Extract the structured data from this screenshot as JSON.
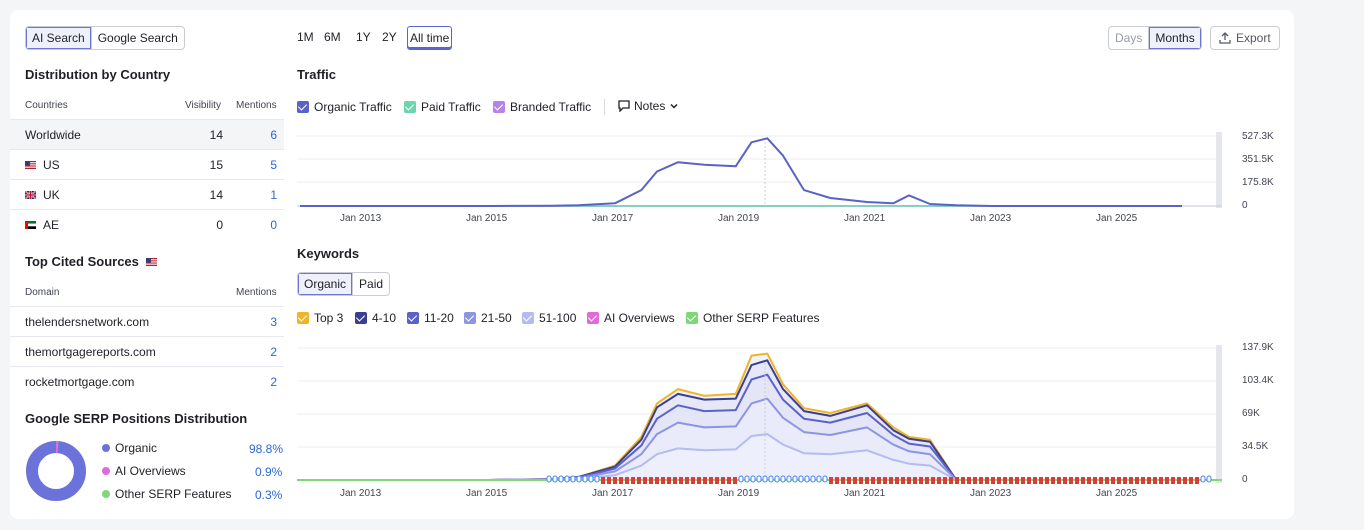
{
  "search_toggle": {
    "options": [
      "AI Search",
      "Google Search"
    ],
    "active": 0
  },
  "periods": {
    "options": [
      "1M",
      "6M",
      "1Y",
      "2Y",
      "All time"
    ],
    "active": 4
  },
  "granularity": {
    "options": [
      "Days",
      "Months"
    ],
    "active": 1
  },
  "export_label": "Export",
  "country_section": {
    "title": "Distribution by Country",
    "columns": [
      "Countries",
      "Visibility",
      "Mentions"
    ],
    "rows": [
      {
        "name": "Worldwide",
        "visibility": "14",
        "mentions": "6",
        "flag": ""
      },
      {
        "name": "US",
        "visibility": "15",
        "mentions": "5",
        "flag": "us"
      },
      {
        "name": "UK",
        "visibility": "14",
        "mentions": "1",
        "flag": "uk"
      },
      {
        "name": "AE",
        "visibility": "0",
        "mentions": "0",
        "flag": "ae"
      }
    ]
  },
  "sources_section": {
    "title": "Top Cited Sources",
    "columns": [
      "Domain",
      "Mentions"
    ],
    "rows": [
      {
        "domain": "thelendersnetwork.com",
        "mentions": "3"
      },
      {
        "domain": "themortgagereports.com",
        "mentions": "2"
      },
      {
        "domain": "rocketmortgage.com",
        "mentions": "2"
      }
    ]
  },
  "serp_section": {
    "title": "Google SERP Positions Distribution",
    "items": [
      {
        "label": "Organic",
        "value": "98.8%",
        "color": "#6b72d9",
        "share": 0.988
      },
      {
        "label": "AI Overviews",
        "value": "0.9%",
        "color": "#e06ad9",
        "share": 0.009
      },
      {
        "label": "Other SERP Features",
        "value": "0.3%",
        "color": "#7ed87a",
        "share": 0.003
      }
    ]
  },
  "traffic": {
    "title": "Traffic",
    "legend": [
      {
        "label": "Organic Traffic",
        "color": "#5a62c8"
      },
      {
        "label": "Paid Traffic",
        "color": "#6fd3b0"
      },
      {
        "label": "Branded Traffic",
        "color": "#b583ea"
      }
    ],
    "notes_label": "Notes",
    "y_ticks": [
      "527.3K",
      "351.5K",
      "175.8K",
      "0"
    ],
    "x_ticks": [
      "Jan 2013",
      "Jan 2015",
      "Jan 2017",
      "Jan 2019",
      "Jan 2021",
      "Jan 2023",
      "Jan 2025"
    ]
  },
  "keywords": {
    "title": "Keywords",
    "tabs": [
      "Organic",
      "Paid"
    ],
    "active_tab": 0,
    "legend": [
      {
        "label": "Top 3",
        "color": "#f0b428"
      },
      {
        "label": "4-10",
        "color": "#3b3f8f"
      },
      {
        "label": "11-20",
        "color": "#5a62c8"
      },
      {
        "label": "21-50",
        "color": "#8d94e3"
      },
      {
        "label": "51-100",
        "color": "#b4bbf0"
      },
      {
        "label": "AI Overviews",
        "color": "#e06ad9"
      },
      {
        "label": "Other SERP Features",
        "color": "#7ed87a"
      }
    ],
    "y_ticks": [
      "137.9K",
      "103.4K",
      "69K",
      "34.5K",
      "0"
    ],
    "x_ticks": [
      "Jan 2013",
      "Jan 2015",
      "Jan 2017",
      "Jan 2019",
      "Jan 2021",
      "Jan 2023",
      "Jan 2025"
    ]
  },
  "chart_data": [
    {
      "type": "line",
      "ylabel": "",
      "xlabel": "",
      "ylim": [
        0,
        527300
      ],
      "x": [
        "2012-01",
        "2013-01",
        "2014-01",
        "2015-01",
        "2016-01",
        "2016-06",
        "2017-01",
        "2017-06",
        "2017-09",
        "2018-01",
        "2018-06",
        "2018-12",
        "2019-03",
        "2019-06",
        "2019-09",
        "2020-01",
        "2020-06",
        "2021-01",
        "2021-06",
        "2021-09",
        "2022-01",
        "2022-06",
        "2023-01",
        "2024-01",
        "2025-01",
        "2026-01"
      ],
      "series": [
        {
          "name": "Organic Traffic",
          "values": [
            0,
            0,
            0,
            0,
            2000,
            5000,
            20000,
            120000,
            260000,
            330000,
            310000,
            300000,
            480000,
            510000,
            380000,
            120000,
            60000,
            30000,
            20000,
            80000,
            15000,
            5000,
            0,
            0,
            0,
            0
          ]
        },
        {
          "name": "Paid Traffic",
          "values": [
            0,
            0,
            0,
            0,
            0,
            0,
            0,
            0,
            0,
            0,
            0,
            0,
            0,
            0,
            0,
            0,
            0,
            0,
            0,
            0,
            0,
            0,
            0,
            0,
            0,
            0
          ]
        },
        {
          "name": "Branded Traffic",
          "values": [
            0,
            0,
            0,
            0,
            0,
            0,
            0,
            0,
            0,
            0,
            0,
            0,
            0,
            0,
            0,
            0,
            0,
            0,
            0,
            0,
            0,
            0,
            0,
            0,
            0,
            0
          ]
        }
      ]
    },
    {
      "type": "area",
      "ylabel": "",
      "xlabel": "",
      "ylim": [
        0,
        137900
      ],
      "x": [
        "2012-01",
        "2013-01",
        "2014-01",
        "2015-01",
        "2016-01",
        "2016-06",
        "2017-01",
        "2017-06",
        "2017-09",
        "2018-01",
        "2018-06",
        "2018-12",
        "2019-03",
        "2019-06",
        "2019-09",
        "2020-01",
        "2020-06",
        "2021-01",
        "2021-06",
        "2021-09",
        "2022-01",
        "2022-06",
        "2023-01",
        "2024-01",
        "2025-01",
        "2026-01"
      ],
      "series": [
        {
          "name": "Top 3",
          "values": [
            0,
            0,
            0,
            0,
            1000,
            3000,
            15000,
            45000,
            80000,
            95000,
            88000,
            90000,
            130000,
            132000,
            100000,
            75000,
            70000,
            80000,
            55000,
            45000,
            42000,
            0,
            0,
            0,
            0,
            0
          ]
        },
        {
          "name": "4-10",
          "values": [
            0,
            0,
            0,
            0,
            1000,
            3000,
            14000,
            42000,
            76000,
            90000,
            84000,
            85000,
            120000,
            125000,
            95000,
            72000,
            67000,
            78000,
            52000,
            43000,
            40000,
            0,
            0,
            0,
            0,
            0
          ]
        },
        {
          "name": "11-20",
          "values": [
            0,
            0,
            0,
            0,
            800,
            2500,
            12000,
            36000,
            64000,
            78000,
            72000,
            73000,
            105000,
            110000,
            84000,
            64000,
            60000,
            70000,
            47000,
            38000,
            35000,
            0,
            0,
            0,
            0,
            0
          ]
        },
        {
          "name": "21-50",
          "values": [
            0,
            0,
            0,
            0,
            600,
            2000,
            9000,
            27000,
            48000,
            60000,
            55000,
            56000,
            80000,
            85000,
            65000,
            50000,
            47000,
            55000,
            37000,
            30000,
            27000,
            0,
            0,
            0,
            0,
            0
          ]
        },
        {
          "name": "51-100",
          "values": [
            0,
            0,
            0,
            0,
            400,
            1200,
            5000,
            15000,
            27000,
            33000,
            31000,
            32000,
            46000,
            48000,
            37000,
            28000,
            27000,
            31000,
            21000,
            17000,
            15000,
            0,
            0,
            0,
            0,
            0
          ]
        },
        {
          "name": "AI Overviews",
          "values": [
            0,
            0,
            0,
            0,
            0,
            0,
            0,
            0,
            0,
            0,
            0,
            0,
            0,
            0,
            0,
            0,
            0,
            0,
            0,
            0,
            0,
            0,
            0,
            0,
            0,
            0
          ]
        },
        {
          "name": "Other SERP Features",
          "values": [
            0,
            0,
            0,
            0,
            0,
            0,
            0,
            0,
            0,
            0,
            0,
            0,
            0,
            0,
            0,
            0,
            0,
            0,
            0,
            0,
            0,
            0,
            0,
            0,
            0,
            0
          ]
        }
      ]
    }
  ]
}
